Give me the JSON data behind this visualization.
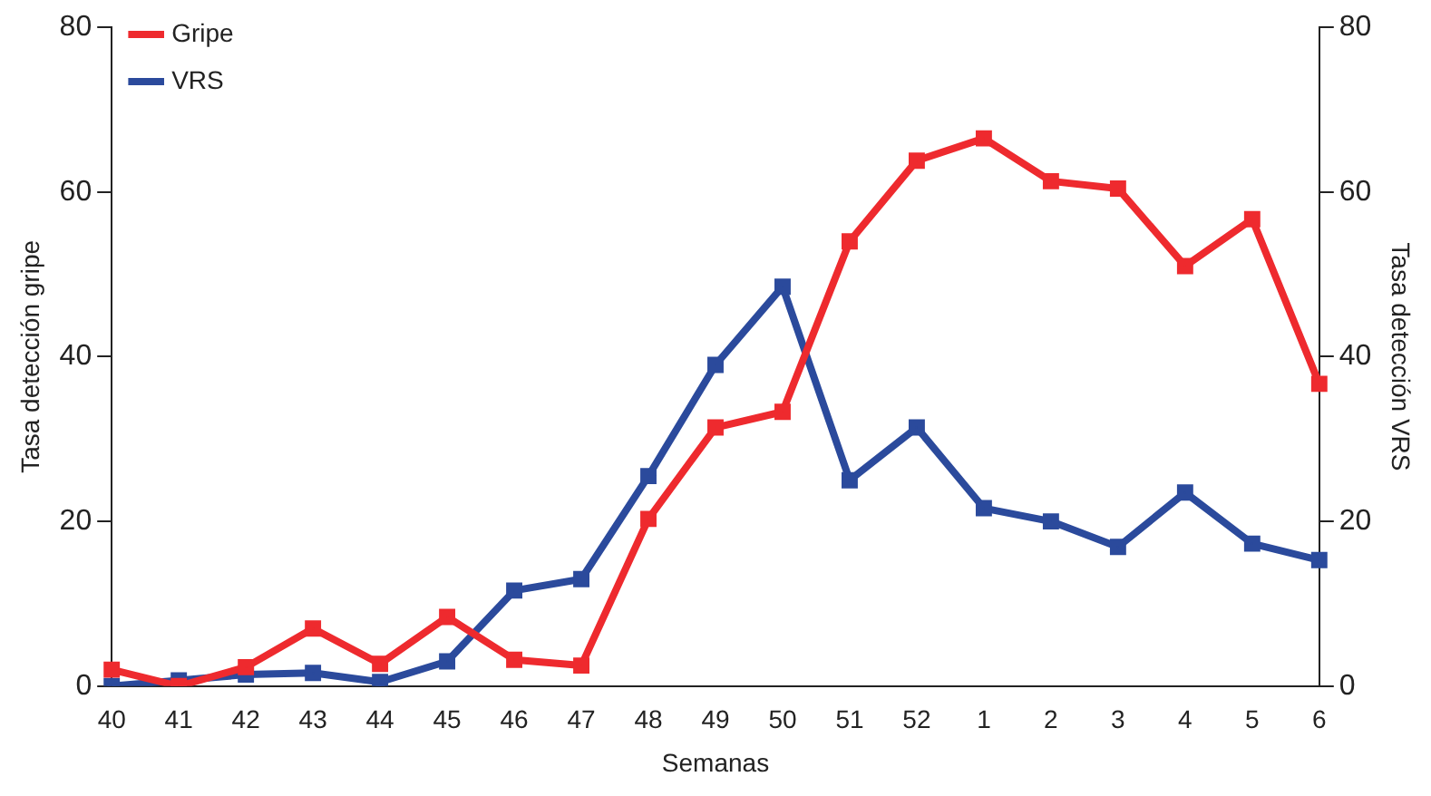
{
  "chart_data": {
    "type": "line",
    "xlabel": "Semanas",
    "ylabel": "Tasa detección gripe",
    "y2label": "Tasa detección VRS",
    "categories": [
      "40",
      "41",
      "42",
      "43",
      "44",
      "45",
      "46",
      "47",
      "48",
      "49",
      "50",
      "51",
      "52",
      "1",
      "2",
      "3",
      "4",
      "5",
      "6"
    ],
    "series": [
      {
        "name": "Gripe",
        "color": "#ee2a2e",
        "values": [
          2.0,
          0,
          2.3,
          7.0,
          2.7,
          8.4,
          3.2,
          2.5,
          20.3,
          31.4,
          33.3,
          54,
          63.8,
          66.5,
          61.3,
          60.4,
          51,
          56.7,
          36.7
        ]
      },
      {
        "name": "VRS",
        "color": "#2b4a9c",
        "axis": "y2",
        "values": [
          0,
          0.7,
          1.4,
          1.6,
          0.5,
          3.0,
          11.6,
          13.0,
          25.5,
          39,
          48.5,
          25,
          31.4,
          21.6,
          20,
          16.9,
          23.5,
          17.3,
          15.3
        ]
      }
    ],
    "ylim": [
      0,
      80
    ],
    "yticks": [
      0,
      20,
      40,
      60,
      80
    ],
    "y2lim": [
      0,
      80
    ],
    "y2ticks": [
      0,
      20,
      40,
      60,
      80
    ],
    "legend": "top left",
    "marker": "square",
    "line_style": "solid",
    "grid": false
  }
}
